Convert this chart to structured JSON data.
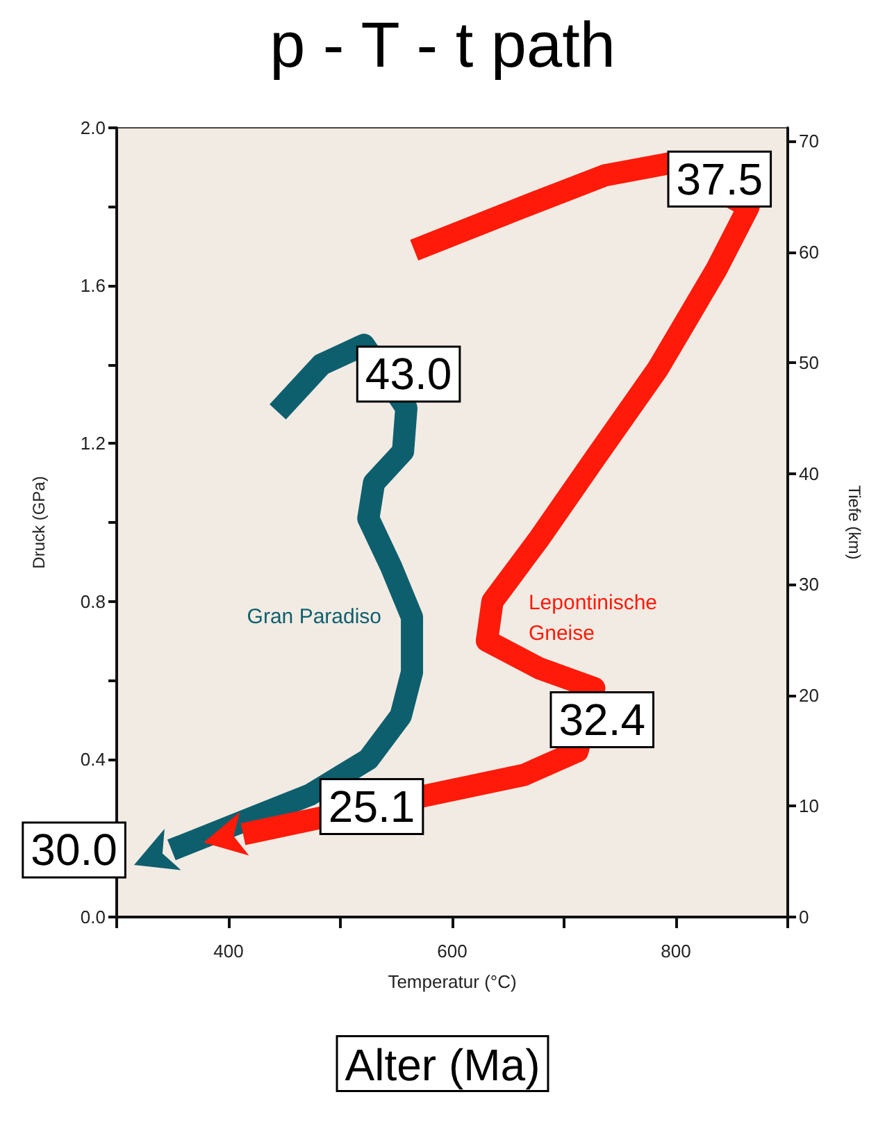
{
  "chart_data": {
    "type": "line",
    "title": "p - T - t path",
    "xlabel": "Temperatur (°C)",
    "ylabel": "Druck (GPa)",
    "y2label": "Tiefe (km)",
    "xlim": [
      300,
      900
    ],
    "xticks": [
      {
        "value": 300,
        "label": null
      },
      400,
      {
        "value": 500,
        "label": null
      },
      600,
      {
        "value": 700,
        "label": null
      },
      800,
      {
        "value": 900,
        "label": null
      }
    ],
    "ylim": [
      0,
      2
    ],
    "yticks": [
      "0.0",
      {
        "value": 0.2,
        "label": null
      },
      0.4,
      {
        "value": 0.6,
        "label": null
      },
      0.8,
      {
        "value": 1.0,
        "label": null
      },
      1.2,
      {
        "value": 1.4,
        "label": null
      },
      1.6,
      {
        "value": 1.8,
        "label": null
      },
      "2.0"
    ],
    "y2lim": [
      0,
      71.2
    ],
    "y2ticks": [
      0,
      10,
      20,
      30,
      40,
      50,
      60,
      70
    ],
    "grid": false,
    "line_style": "solid",
    "series": [
      {
        "name": "Gran Paradiso",
        "color": "#0e5f6e",
        "x": [
          444,
          483,
          521,
          550,
          559,
          556,
          530,
          525,
          545,
          564,
          564,
          554,
          525,
          473,
          411,
          349
        ],
        "values": [
          1.28,
          1.4,
          1.45,
          null,
          1.29,
          1.18,
          1.1,
          1.01,
          0.89,
          0.76,
          0.62,
          0.51,
          0.4,
          0.31,
          0.24,
          0.17
        ]
      },
      {
        "name": "Lepontinische Gneise",
        "color": "#ff1a0a",
        "x": [
          566,
          664,
          737,
          794,
          865,
          836,
          784,
          727,
          678,
          636,
          631,
          678,
          727,
          712,
          664,
          569,
          506,
          413
        ],
        "values": [
          1.69,
          1.8,
          1.88,
          1.91,
          1.8,
          1.64,
          1.39,
          1.16,
          0.96,
          0.8,
          0.7,
          0.63,
          0.58,
          0.42,
          0.36,
          null,
          null,
          0.21
        ]
      }
    ],
    "annotations": [
      {
        "text": "37.5",
        "x": 839,
        "y": 1.87
      },
      {
        "text": "43.0",
        "x": 521,
        "y": 1.45
      },
      {
        "text": "32.4",
        "x": 734,
        "y": 0.5
      },
      {
        "text": "25.1",
        "x": 528,
        "y": 0.28
      },
      {
        "text": "30.0",
        "x": 349,
        "y": 0.17
      },
      "Alter (Ma)"
    ]
  }
}
